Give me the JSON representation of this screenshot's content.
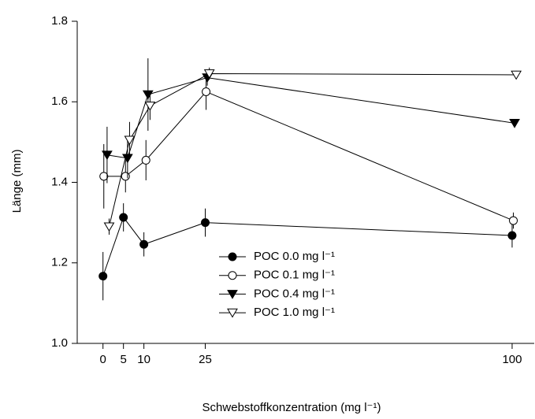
{
  "chart_data": {
    "type": "line",
    "xlabel": "Schwebstoffkonzentration (mg l⁻¹)",
    "ylabel": "Länge (mm)",
    "xlim": [
      -6.3,
      105.4
    ],
    "ylim": [
      1.0,
      1.8
    ],
    "xticks": [
      0,
      5,
      10,
      25,
      100
    ],
    "yticks": [
      {
        "value": 1.0,
        "label": "1.0"
      },
      {
        "value": 1.2,
        "label": "1.2"
      },
      {
        "value": 1.4,
        "label": "1.4"
      },
      {
        "value": 1.6,
        "label": "1.6"
      },
      {
        "value": 1.8,
        "label": "1.8"
      }
    ],
    "series": [
      {
        "name": "POC 0.0 mg l⁻¹",
        "color": "#000000",
        "marker": "circle",
        "x": [
          0,
          5,
          10,
          25,
          100
        ],
        "values": [
          1.167,
          1.313,
          1.246,
          1.3,
          1.268
        ],
        "errors": [
          0.06,
          0.035,
          0.03,
          0.035,
          0.03
        ]
      },
      {
        "name": "POC 0.1 mg l⁻¹",
        "color": "#000000",
        "marker": "circle-open",
        "x": [
          0.2,
          5.5,
          10.5,
          25.2,
          100.3
        ],
        "values": [
          1.415,
          1.415,
          1.455,
          1.625,
          1.305
        ],
        "errors": [
          0.08,
          0.04,
          0.05,
          0.045,
          0.02
        ]
      },
      {
        "name": "POC 0.4 mg l⁻¹",
        "color": "#000000",
        "marker": "triangle-down",
        "x": [
          1,
          6,
          11,
          25.5,
          100.6
        ],
        "values": [
          1.468,
          1.46,
          1.618,
          1.66,
          1.547
        ],
        "errors": [
          0.07,
          0.05,
          0.09,
          0.02,
          0.005
        ]
      },
      {
        "name": "POC 1.0 mg l⁻¹",
        "color": "#000000",
        "marker": "triangle-down-open",
        "x": [
          1.5,
          6.5,
          11.5,
          26,
          101
        ],
        "values": [
          1.29,
          1.505,
          1.59,
          1.67,
          1.667
        ],
        "errors": [
          0.02,
          0.045,
          0.035,
          0.015,
          0.01
        ]
      }
    ],
    "legend": "lower-center"
  }
}
